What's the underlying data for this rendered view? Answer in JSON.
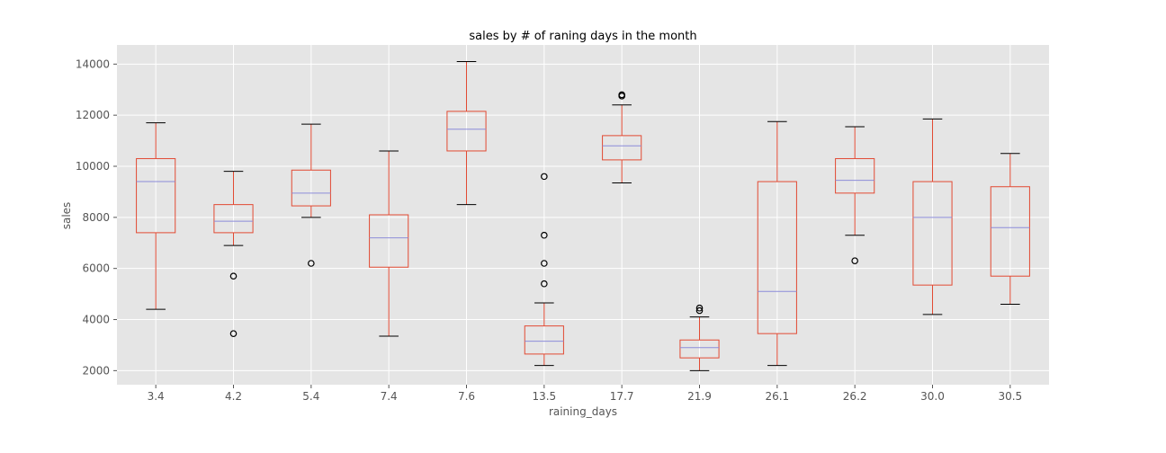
{
  "chart_data": {
    "type": "boxplot",
    "title": "sales by # of raning days in the month",
    "xlabel": "raining_days",
    "ylabel": "sales",
    "ylim": [
      1450,
      14750
    ],
    "yticks": [
      2000,
      4000,
      6000,
      8000,
      10000,
      12000,
      14000
    ],
    "grid": true,
    "colors": {
      "background": "#e5e5e5",
      "box": "#e24a33",
      "median": "#8c8cd9",
      "cap": "#000000",
      "grid": "#ffffff"
    },
    "categories": [
      "3.4",
      "4.2",
      "5.4",
      "7.4",
      "7.6",
      "13.5",
      "17.7",
      "21.9",
      "26.1",
      "26.2",
      "30.0",
      "30.5"
    ],
    "boxes": [
      {
        "category": "3.4",
        "whislo": 4400,
        "q1": 7400,
        "med": 9400,
        "q3": 10300,
        "whishi": 11700,
        "fliers": []
      },
      {
        "category": "4.2",
        "whislo": 6900,
        "q1": 7400,
        "med": 7850,
        "q3": 8500,
        "whishi": 9800,
        "fliers": [
          5700,
          3450
        ]
      },
      {
        "category": "5.4",
        "whislo": 8000,
        "q1": 8450,
        "med": 8950,
        "q3": 9850,
        "whishi": 11650,
        "fliers": [
          6200
        ]
      },
      {
        "category": "7.4",
        "whislo": 3350,
        "q1": 6050,
        "med": 7200,
        "q3": 8100,
        "whishi": 10600,
        "fliers": []
      },
      {
        "category": "7.6",
        "whislo": 8500,
        "q1": 10600,
        "med": 11450,
        "q3": 12150,
        "whishi": 14100,
        "fliers": []
      },
      {
        "category": "13.5",
        "whislo": 2200,
        "q1": 2650,
        "med": 3150,
        "q3": 3750,
        "whishi": 4650,
        "fliers": [
          5400,
          6200,
          7300,
          9600
        ]
      },
      {
        "category": "17.7",
        "whislo": 9350,
        "q1": 10250,
        "med": 10800,
        "q3": 11200,
        "whishi": 12400,
        "fliers": [
          12750,
          12800
        ]
      },
      {
        "category": "21.9",
        "whislo": 2000,
        "q1": 2500,
        "med": 2900,
        "q3": 3200,
        "whishi": 4100,
        "fliers": [
          4350,
          4450
        ]
      },
      {
        "category": "26.1",
        "whislo": 2200,
        "q1": 3450,
        "med": 5100,
        "q3": 9400,
        "whishi": 11750,
        "fliers": []
      },
      {
        "category": "26.2",
        "whislo": 7300,
        "q1": 8950,
        "med": 9450,
        "q3": 10300,
        "whishi": 11550,
        "fliers": [
          6300
        ]
      },
      {
        "category": "30.0",
        "whislo": 4200,
        "q1": 5350,
        "med": 8000,
        "q3": 9400,
        "whishi": 11850,
        "fliers": []
      },
      {
        "category": "30.5",
        "whislo": 4600,
        "q1": 5700,
        "med": 7600,
        "q3": 9200,
        "whishi": 10500,
        "fliers": []
      }
    ]
  }
}
